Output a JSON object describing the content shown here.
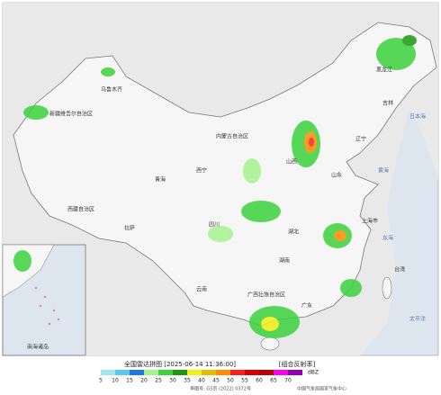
{
  "header": {
    "title": "全国雷达拼图 [2025-06-14 11:36:00]",
    "product": "[组合反射率]"
  },
  "legend": {
    "unit": "dBZ",
    "levels": [
      {
        "value": 5,
        "color": "#a0e6f0"
      },
      {
        "value": 10,
        "color": "#5ac8f0"
      },
      {
        "value": 15,
        "color": "#1e78e6"
      },
      {
        "value": 20,
        "color": "#a6f28e"
      },
      {
        "value": 25,
        "color": "#3cd23c"
      },
      {
        "value": 30,
        "color": "#1e9614"
      },
      {
        "value": 35,
        "color": "#f0f014"
      },
      {
        "value": 40,
        "color": "#e6be00"
      },
      {
        "value": 45,
        "color": "#ff8c00"
      },
      {
        "value": 50,
        "color": "#ff1e1e"
      },
      {
        "value": 55,
        "color": "#dc0000"
      },
      {
        "value": 60,
        "color": "#be0000"
      },
      {
        "value": 65,
        "color": "#ff00f0"
      },
      {
        "value": 70,
        "color": "#9600b4"
      }
    ]
  },
  "map": {
    "labels": [
      "新疆维吾尔自治区",
      "乌鲁木齐",
      "西藏自治区",
      "拉萨",
      "青海",
      "西宁",
      "内蒙古自治区",
      "黑龙江",
      "吉林",
      "辽宁",
      "山东",
      "山西",
      "四川",
      "湖北",
      "湖南",
      "广西壮族自治区",
      "广东",
      "云南",
      "台湾",
      "上海市",
      "黄海",
      "东海",
      "日本海",
      "太平洋",
      "南海诸岛"
    ]
  },
  "footer": {
    "approval": "审图号: GS京 (2022) 0372号",
    "agency": "中国气象局国家气象中心"
  }
}
